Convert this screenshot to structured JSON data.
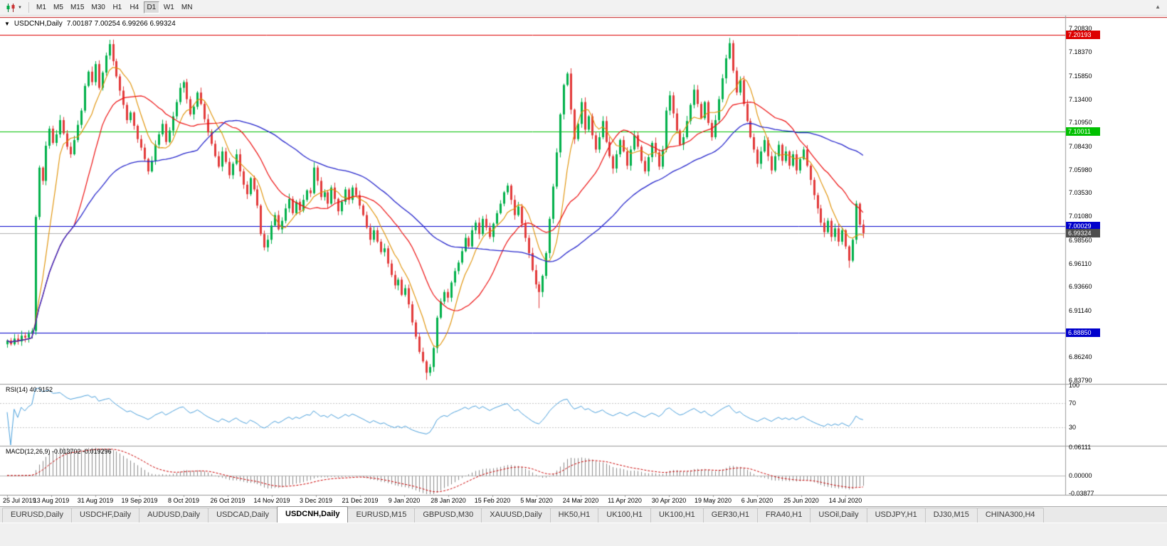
{
  "toolbar": {
    "timeframes": [
      "M1",
      "M5",
      "M15",
      "M30",
      "H1",
      "H4",
      "D1",
      "W1",
      "MN"
    ],
    "active_timeframe": "D1"
  },
  "chart": {
    "header": {
      "symbol_period": "USDCNH,Daily",
      "ohlc": "7.00187 7.00254 6.99266 6.99324"
    },
    "price_axis_ticks": [
      "7.20830",
      "7.18370",
      "7.15850",
      "7.13400",
      "7.10950",
      "7.08430",
      "7.05980",
      "7.03530",
      "7.01080",
      "6.98560",
      "6.96110",
      "6.93660",
      "6.91140",
      "6.88690",
      "6.86240",
      "6.83790"
    ],
    "hlines": [
      {
        "value": 7.20193,
        "label": "7.20193",
        "color": "#dd0000"
      },
      {
        "value": 7.10011,
        "label": "7.10011",
        "color": "#00c000"
      },
      {
        "value": 7.00029,
        "label": "7.00029",
        "color": "#0000cc"
      },
      {
        "value": 6.8885,
        "label": "6.88850",
        "color": "#0000cc"
      }
    ],
    "current_price": {
      "value": 6.99324,
      "label": "6.99324",
      "line_color": "#b0b0b0",
      "badge_color": "#4d4d4d"
    },
    "dates": [
      "25 Jul 2019",
      "13 Aug 2019",
      "31 Aug 2019",
      "19 Sep 2019",
      "8 Oct 2019",
      "26 Oct 2019",
      "14 Nov 2019",
      "3 Dec 2019",
      "21 Dec 2019",
      "9 Jan 2020",
      "28 Jan 2020",
      "15 Feb 2020",
      "5 Mar 2020",
      "24 Mar 2020",
      "11 Apr 2020",
      "30 Apr 2020",
      "19 May 2020",
      "6 Jun 2020",
      "25 Jun 2020",
      "14 Jul 2020"
    ]
  },
  "rsi": {
    "label": "RSI(14) 40.9152",
    "axis": [
      "100",
      "70",
      "30"
    ],
    "levels": [
      70,
      30
    ],
    "line_color": "#4aa0dc"
  },
  "macd": {
    "label": "MACD(12,26,9) -0.013702 -0.019296",
    "axis": [
      {
        "label": "0.06111",
        "value": 0.06111
      },
      {
        "label": "0.00000",
        "value": 0.0
      },
      {
        "label": "-0.03877",
        "value": -0.03877
      }
    ],
    "range": [
      -0.03877,
      0.06111
    ],
    "hist_color": "#8a8a8a",
    "signal_color": "#cc0000"
  },
  "tabs": {
    "items": [
      "EURUSD,Daily",
      "USDCHF,Daily",
      "AUDUSD,Daily",
      "USDCAD,Daily",
      "USDCNH,Daily",
      "EURUSD,M15",
      "GBPUSD,M30",
      "XAUUSD,Daily",
      "HK50,H1",
      "UK100,H1",
      "UK100,H1",
      "GER30,H1",
      "FRA40,H1",
      "USOil,Daily",
      "USDJPY,H1",
      "DJ30,M15",
      "CHINA300,H4"
    ],
    "active_index": 4
  },
  "chart_data": {
    "type": "candlestick",
    "symbol": "USDCNH",
    "timeframe": "Daily",
    "x_range": [
      "25 Jul 2019",
      "22 Jul 2020"
    ],
    "y_range": [
      6.833,
      7.2115
    ],
    "colors": {
      "up": "#00b04a",
      "down": "#e23a3a"
    },
    "closes": [
      6.88,
      6.876,
      6.882,
      6.879,
      6.885,
      6.883,
      6.887,
      6.89,
      7.01,
      7.062,
      7.048,
      7.085,
      7.103,
      7.088,
      7.097,
      7.112,
      7.098,
      7.084,
      7.076,
      7.091,
      7.107,
      7.122,
      7.148,
      7.163,
      7.152,
      7.171,
      7.146,
      7.162,
      7.18,
      7.192,
      7.174,
      7.158,
      7.143,
      7.128,
      7.112,
      7.12,
      7.106,
      7.092,
      7.083,
      7.071,
      7.058,
      7.069,
      7.086,
      7.097,
      7.108,
      7.089,
      7.101,
      7.116,
      7.131,
      7.146,
      7.152,
      7.134,
      7.118,
      7.126,
      7.141,
      7.129,
      7.113,
      7.099,
      7.087,
      7.074,
      7.063,
      7.079,
      7.068,
      7.054,
      7.066,
      7.076,
      7.058,
      7.044,
      7.034,
      7.051,
      7.039,
      7.022,
      6.992,
      6.978,
      6.986,
      7.001,
      7.012,
      6.997,
      7.006,
      7.019,
      7.029,
      7.014,
      7.026,
      7.017,
      7.028,
      7.038,
      7.035,
      7.062,
      7.048,
      7.031,
      7.036,
      7.024,
      7.041,
      7.029,
      7.016,
      7.026,
      7.039,
      7.028,
      7.041,
      7.033,
      7.022,
      7.012,
      6.999,
      6.986,
      6.996,
      6.984,
      6.973,
      6.977,
      6.961,
      6.949,
      6.938,
      6.944,
      6.928,
      6.935,
      6.918,
      6.899,
      6.884,
      6.868,
      6.858,
      6.846,
      6.852,
      6.872,
      6.904,
      6.921,
      6.931,
      6.925,
      6.941,
      6.953,
      6.962,
      6.974,
      6.988,
      6.979,
      6.996,
      7.004,
      6.992,
      7.008,
      6.999,
      6.989,
      7.003,
      7.014,
      7.024,
      7.036,
      7.043,
      7.028,
      7.012,
      7.021,
      7.003,
      6.988,
      6.972,
      6.954,
      6.939,
      6.931,
      6.948,
      6.972,
      7.008,
      7.042,
      7.078,
      7.118,
      7.149,
      7.161,
      7.123,
      7.092,
      7.108,
      7.131,
      7.102,
      7.116,
      7.096,
      7.081,
      7.094,
      7.111,
      7.089,
      7.074,
      7.061,
      7.076,
      7.091,
      7.079,
      7.064,
      7.081,
      7.096,
      7.084,
      7.069,
      7.058,
      7.073,
      7.088,
      7.078,
      7.063,
      7.081,
      7.122,
      7.138,
      7.119,
      7.101,
      7.086,
      7.094,
      7.111,
      7.128,
      7.144,
      7.129,
      7.114,
      7.131,
      7.109,
      7.094,
      7.112,
      7.134,
      7.156,
      7.177,
      7.193,
      7.164,
      7.141,
      7.154,
      7.129,
      7.111,
      7.094,
      7.081,
      7.066,
      7.079,
      7.091,
      7.074,
      7.059,
      7.074,
      7.086,
      7.069,
      7.079,
      7.064,
      7.076,
      7.059,
      7.071,
      7.081,
      7.064,
      7.049,
      7.033,
      7.019,
      7.004,
      6.994,
      7.006,
      6.989,
      6.998,
      6.984,
      6.996,
      6.979,
      6.964,
      6.986,
      7.024,
      7.002,
      6.993
    ],
    "wick_overrides": {
      "29": {
        "high": 7.1965
      },
      "119": {
        "low": 6.8385
      },
      "151": {
        "low": 6.914
      },
      "205": {
        "high": 7.1985
      },
      "239": {
        "low": 6.9565
      }
    },
    "indicators": {
      "ma_fast": {
        "type": "sma",
        "period": 8,
        "color": "#e09000"
      },
      "ma_mid": {
        "type": "sma",
        "period": 20,
        "color": "#ee1010"
      },
      "ma_slow": {
        "type": "sma",
        "period": 55,
        "color": "#2626cc"
      },
      "rsi": {
        "period": 14,
        "current": 40.9152
      },
      "macd": {
        "fast": 12,
        "slow": 26,
        "signal": 9,
        "current_main": -0.013702,
        "current_signal": -0.019296
      }
    }
  }
}
